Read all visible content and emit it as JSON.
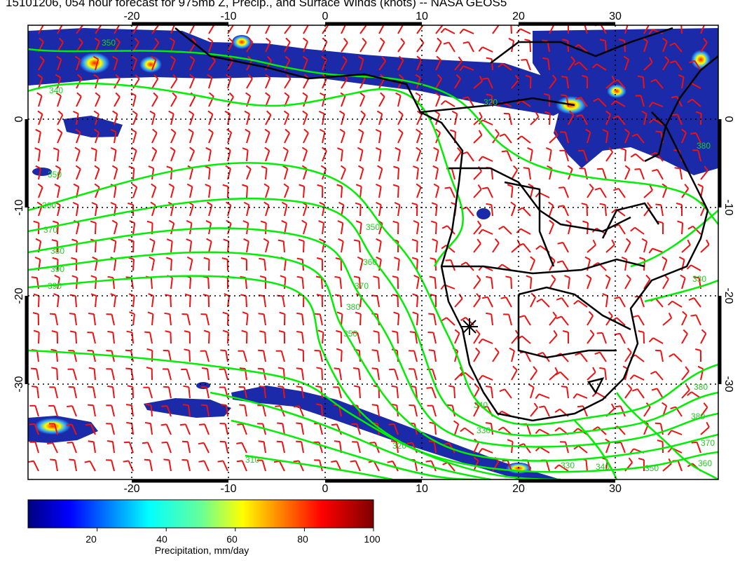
{
  "title": "15101206, 054 hour forecast for 975mb Z, Precip., and Surface Winds (knots) -- NASA GEOS5",
  "map": {
    "lon_ticks": [
      "-20",
      "-10",
      "0",
      "10",
      "20",
      "30"
    ],
    "lat_ticks": [
      "0",
      "-10",
      "-20",
      "-30"
    ],
    "contour_labels": [
      "350",
      "340",
      "350",
      "360",
      "370",
      "380",
      "390",
      "350",
      "360",
      "370",
      "380",
      "390",
      "350",
      "340",
      "330",
      "320",
      "310",
      "380",
      "370",
      "360",
      "350",
      "340",
      "330",
      "320",
      "330",
      "380",
      "380"
    ],
    "colors": {
      "contour": "#00ee00",
      "barbs": "#ee1111",
      "coast": "#000000",
      "precip_low": "#000080",
      "precip_high": "#800000"
    }
  },
  "colorbar": {
    "ticks": [
      "20",
      "40",
      "60",
      "80",
      "100"
    ],
    "label": "Precipitation, mm/day",
    "min": 0,
    "max": 100
  },
  "marker": {
    "symbol": "asterisk",
    "lon": 15,
    "lat": -23
  }
}
